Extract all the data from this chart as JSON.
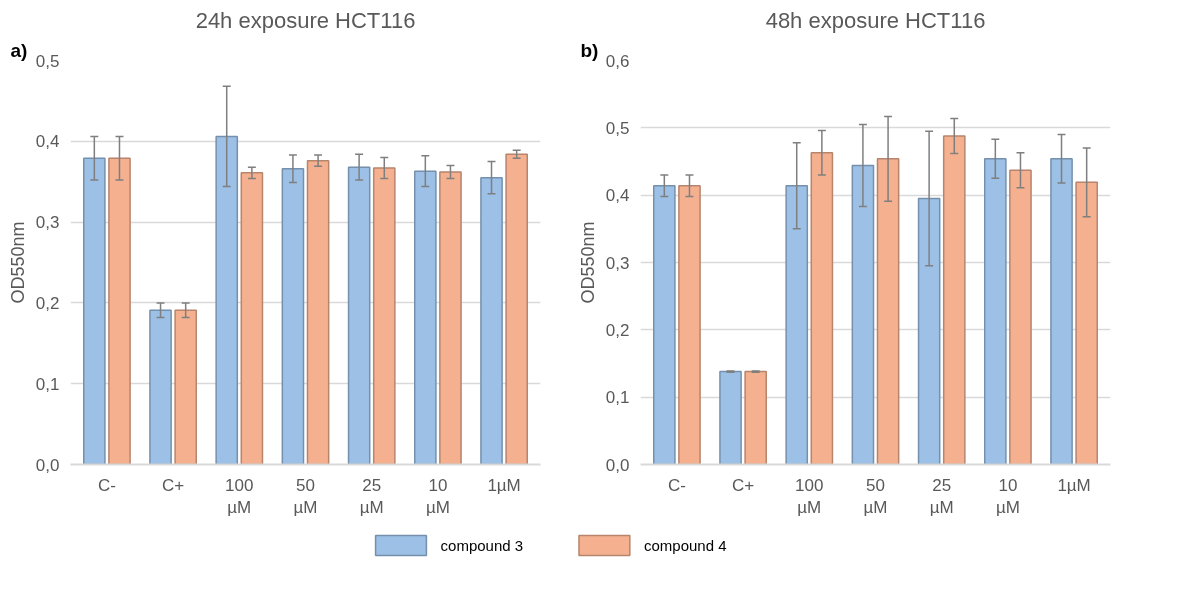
{
  "chart_data": [
    {
      "type": "bar",
      "title": "24h exposure HCT116",
      "ylabel": "OD550nm",
      "annotations": [
        "a)"
      ],
      "categories": [
        "C-",
        "C+",
        "100\nµM",
        "50\nµM",
        "25\nµM",
        "10\nµM",
        "1µM"
      ],
      "series": [
        {
          "name": "compound 3",
          "color": "#9dc0e6",
          "values": [
            0.379,
            0.191,
            0.406,
            0.366,
            0.368,
            0.363,
            0.355
          ],
          "errors": [
            0.027,
            0.009,
            0.062,
            0.017,
            0.016,
            0.019,
            0.02
          ]
        },
        {
          "name": "compound 4",
          "color": "#f5b090",
          "values": [
            0.379,
            0.191,
            0.361,
            0.376,
            0.367,
            0.362,
            0.384
          ],
          "errors": [
            0.027,
            0.009,
            0.007,
            0.007,
            0.013,
            0.008,
            0.005
          ]
        }
      ],
      "ylim": [
        0,
        0.5
      ],
      "yticks": [
        {
          "value": 0,
          "label": "0,0"
        },
        {
          "value": 0.1,
          "label": "0,1"
        },
        {
          "value": 0.2,
          "label": "0,2"
        },
        {
          "value": 0.3,
          "label": "0,3"
        },
        {
          "value": 0.4,
          "label": "0,4"
        },
        {
          "value": 0.5,
          "label": "0,5"
        }
      ],
      "grid": "y",
      "legend": "bottom"
    },
    {
      "type": "bar",
      "title": "48h exposure HCT116",
      "ylabel": "OD550nm",
      "annotations": [
        "b)"
      ],
      "categories": [
        "C-",
        "C+",
        "100\nµM",
        "50\nµM",
        "25\nµM",
        "10\nµM",
        "1µM"
      ],
      "series": [
        {
          "color": "#9dc0e6",
          "values": [
            0.414,
            0.138,
            0.414,
            0.444,
            0.395,
            0.454,
            0.454
          ],
          "errors": [
            0.016,
            0.001,
            0.064,
            0.061,
            0.1,
            0.029,
            0.036
          ]
        },
        {
          "color": "#f5b090",
          "values": [
            0.414,
            0.138,
            0.463,
            0.454,
            0.488,
            0.437,
            0.419
          ],
          "errors": [
            0.016,
            0.001,
            0.033,
            0.063,
            0.026,
            0.026,
            0.051
          ]
        }
      ],
      "ylim": [
        0,
        0.6
      ],
      "yticks": [
        {
          "value": 0,
          "label": "0,0"
        },
        {
          "value": 0.1,
          "label": "0,1"
        },
        {
          "value": 0.2,
          "label": "0,2"
        },
        {
          "value": 0.3,
          "label": "0,3"
        },
        {
          "value": 0.4,
          "label": "0,4"
        },
        {
          "value": 0.5,
          "label": "0,5"
        },
        {
          "value": 0.6,
          "label": "0,6"
        }
      ],
      "grid": "y"
    }
  ]
}
